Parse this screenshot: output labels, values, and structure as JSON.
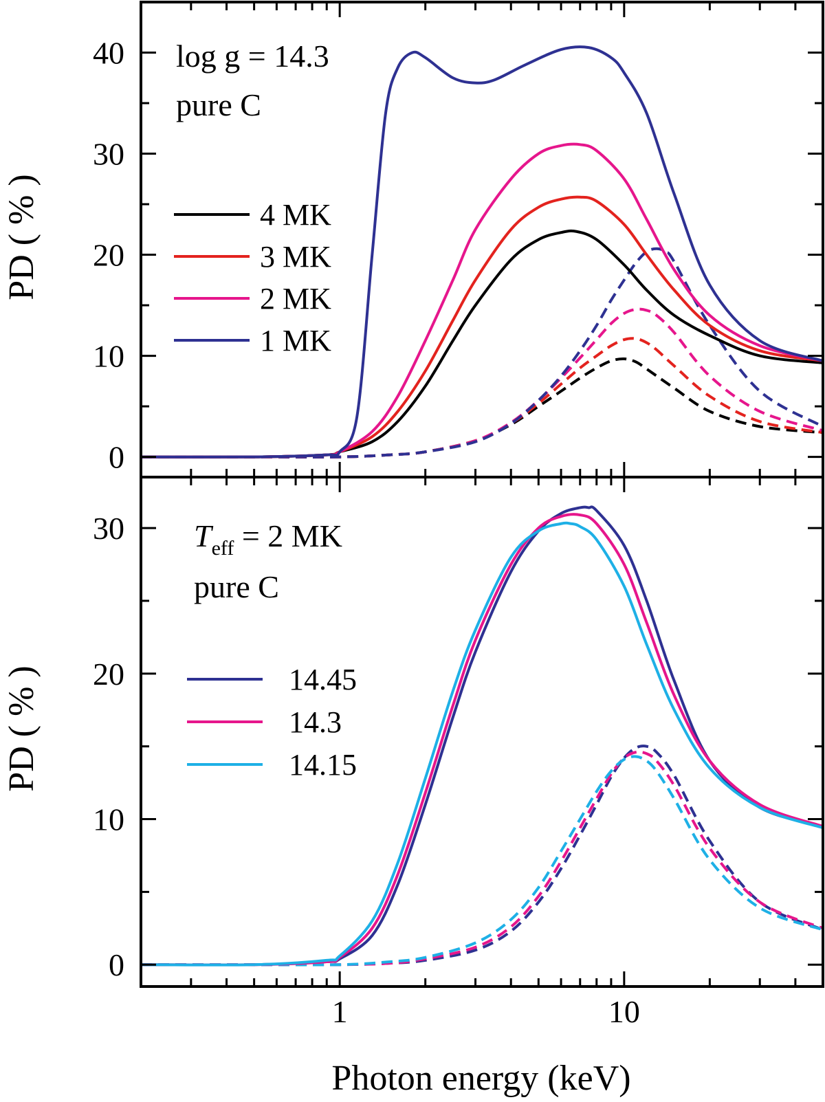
{
  "chart_data": [
    {
      "type": "line",
      "panel": "top",
      "ylabel": "PD ( % )",
      "xlabel": "",
      "xscale": "log",
      "xlim": [
        0.2,
        50
      ],
      "ylim": [
        -2,
        45
      ],
      "yticks": [
        0,
        10,
        20,
        30,
        40
      ],
      "xticks_labeled": [
        1,
        10
      ],
      "annotation": {
        "line1": "log g = 14.3",
        "line2": "pure C"
      },
      "legend_placement": "left-middle",
      "colors": {
        "4 MK": "#000000",
        "3 MK": "#e3231e",
        "2 MK": "#e6168c",
        "1 MK": "#2e3192"
      },
      "series": [
        {
          "name": "4 MK",
          "color": "#000000",
          "style": "solid",
          "x": [
            0.2,
            0.5,
            0.9,
            1.0,
            1.3,
            1.6,
            2.0,
            2.5,
            3.0,
            4.0,
            5.0,
            6.0,
            6.8,
            8.0,
            10.0,
            12.0,
            15.0,
            20.0,
            30.0,
            50.0
          ],
          "y": [
            0,
            0,
            0.2,
            0.5,
            1.5,
            3.5,
            7.0,
            11.5,
            15.0,
            19.5,
            21.5,
            22.2,
            22.3,
            21.5,
            19.0,
            16.5,
            14.0,
            12.0,
            10.0,
            9.3
          ]
        },
        {
          "name": "3 MK",
          "color": "#e3231e",
          "style": "solid",
          "x": [
            0.2,
            0.5,
            0.9,
            1.0,
            1.3,
            1.6,
            2.0,
            2.5,
            3.0,
            4.0,
            5.0,
            6.0,
            7.0,
            8.0,
            10.0,
            12.0,
            15.0,
            20.0,
            30.0,
            50.0
          ],
          "y": [
            0,
            0,
            0.2,
            0.5,
            2.0,
            4.5,
            8.5,
            13.5,
            17.5,
            22.5,
            24.7,
            25.5,
            25.7,
            25.3,
            23.0,
            20.0,
            16.5,
            13.0,
            10.5,
            9.5
          ]
        },
        {
          "name": "2 MK",
          "color": "#e6168c",
          "style": "solid",
          "x": [
            0.2,
            0.5,
            0.9,
            1.0,
            1.3,
            1.6,
            2.0,
            2.5,
            3.0,
            4.0,
            5.0,
            6.0,
            7.0,
            8.0,
            10.0,
            12.0,
            15.0,
            20.0,
            30.0,
            50.0
          ],
          "y": [
            0,
            0,
            0.2,
            0.5,
            2.5,
            6.0,
            11.5,
            17.5,
            22.5,
            27.5,
            30.0,
            30.8,
            30.9,
            30.3,
            27.5,
            23.5,
            18.5,
            14.0,
            11.0,
            9.5
          ]
        },
        {
          "name": "1 MK",
          "color": "#2e3192",
          "style": "solid",
          "x": [
            0.2,
            0.5,
            0.9,
            1.0,
            1.15,
            1.3,
            1.45,
            1.6,
            1.8,
            2.0,
            2.5,
            3.0,
            3.5,
            4.5,
            6.0,
            7.5,
            9.0,
            10.0,
            12.0,
            15.0,
            20.0,
            30.0,
            50.0
          ],
          "y": [
            0,
            0,
            0.2,
            0.5,
            4.0,
            20.0,
            34.0,
            38.5,
            40.0,
            39.5,
            37.5,
            37.0,
            37.3,
            38.8,
            40.3,
            40.5,
            39.5,
            38.0,
            34.0,
            26.0,
            17.0,
            11.5,
            9.5
          ]
        },
        {
          "name": "",
          "color": "#000000",
          "style": "dashed",
          "x": [
            0.2,
            0.5,
            1.0,
            1.5,
            2.0,
            3.0,
            4.0,
            5.0,
            6.0,
            7.0,
            8.0,
            9.0,
            10.0,
            11.0,
            12.0,
            15.0,
            20.0,
            30.0,
            50.0
          ],
          "y": [
            0,
            0,
            0,
            0.2,
            0.5,
            1.6,
            3.2,
            5.0,
            6.5,
            7.8,
            8.8,
            9.5,
            9.7,
            9.4,
            8.7,
            6.8,
            4.5,
            3.0,
            2.4
          ]
        },
        {
          "name": "",
          "color": "#e3231e",
          "style": "dashed",
          "x": [
            0.2,
            0.5,
            1.0,
            1.5,
            2.0,
            3.0,
            4.0,
            5.0,
            6.0,
            7.0,
            8.0,
            9.0,
            10.0,
            11.0,
            12.0,
            13.0,
            15.0,
            20.0,
            30.0,
            50.0
          ],
          "y": [
            0,
            0,
            0,
            0.2,
            0.5,
            1.6,
            3.3,
            5.3,
            7.2,
            8.8,
            10.0,
            11.0,
            11.6,
            11.7,
            11.3,
            10.6,
            9.0,
            6.0,
            3.5,
            2.4
          ]
        },
        {
          "name": "",
          "color": "#e6168c",
          "style": "dashed",
          "x": [
            0.2,
            0.5,
            1.0,
            1.5,
            2.0,
            3.0,
            4.0,
            5.0,
            6.0,
            7.0,
            8.0,
            9.0,
            10.0,
            11.0,
            12.0,
            13.0,
            15.0,
            20.0,
            30.0,
            50.0
          ],
          "y": [
            0,
            0,
            0,
            0.2,
            0.5,
            1.6,
            3.4,
            5.6,
            7.8,
            9.8,
            11.6,
            13.2,
            14.2,
            14.6,
            14.5,
            14.0,
            12.3,
            8.0,
            4.5,
            2.6
          ]
        },
        {
          "name": "",
          "color": "#2e3192",
          "style": "dashed",
          "x": [
            0.2,
            0.5,
            1.0,
            1.5,
            2.0,
            3.0,
            4.0,
            5.0,
            6.0,
            7.0,
            8.0,
            9.0,
            10.0,
            11.0,
            12.0,
            13.0,
            14.0,
            15.0,
            20.0,
            30.0,
            50.0
          ],
          "y": [
            0,
            0,
            0,
            0.2,
            0.5,
            1.5,
            3.3,
            5.6,
            8.0,
            10.5,
            13.0,
            15.5,
            17.5,
            19.2,
            20.3,
            20.6,
            20.3,
            19.3,
            13.0,
            6.5,
            3.0
          ]
        }
      ]
    },
    {
      "type": "line",
      "panel": "bottom",
      "ylabel": "PD ( % )",
      "xlabel": "Photon energy (keV)",
      "xscale": "log",
      "xlim": [
        0.2,
        50
      ],
      "ylim": [
        -1.5,
        33.5
      ],
      "yticks": [
        0,
        10,
        20,
        30
      ],
      "xticks_labeled": [
        1,
        10
      ],
      "annotation": {
        "line1_italic": "T",
        "line1_sub": "eff",
        "line1_rest": " = 2 MK",
        "line2": "pure C"
      },
      "legend_placement": "left-middle",
      "colors": {
        "14.45": "#2e3192",
        "14.3": "#e6168c",
        "14.15": "#1eb0e6"
      },
      "series": [
        {
          "name": "14.45",
          "color": "#2e3192",
          "style": "solid",
          "x": [
            0.2,
            0.5,
            0.9,
            1.0,
            1.3,
            1.6,
            2.0,
            2.5,
            3.0,
            4.0,
            5.0,
            6.0,
            7.0,
            7.5,
            8.0,
            10.0,
            12.0,
            15.0,
            20.0,
            30.0,
            50.0
          ],
          "y": [
            0,
            0,
            0.2,
            0.4,
            2.0,
            5.5,
            11.0,
            17.0,
            21.5,
            27.0,
            29.8,
            31.0,
            31.4,
            31.4,
            31.2,
            28.8,
            25.0,
            19.5,
            14.0,
            10.8,
            9.5
          ]
        },
        {
          "name": "14.3",
          "color": "#e6168c",
          "style": "solid",
          "x": [
            0.2,
            0.5,
            0.9,
            1.0,
            1.3,
            1.6,
            2.0,
            2.5,
            3.0,
            4.0,
            5.0,
            6.0,
            7.0,
            8.0,
            10.0,
            12.0,
            15.0,
            20.0,
            30.0,
            50.0
          ],
          "y": [
            0,
            0,
            0.2,
            0.5,
            2.5,
            6.2,
            11.8,
            17.8,
            22.3,
            27.5,
            30.0,
            30.8,
            30.9,
            30.3,
            27.5,
            23.5,
            18.5,
            14.0,
            11.0,
            9.5
          ]
        },
        {
          "name": "14.15",
          "color": "#1eb0e6",
          "style": "solid",
          "x": [
            0.2,
            0.5,
            0.9,
            1.0,
            1.3,
            1.6,
            2.0,
            2.5,
            3.0,
            4.0,
            5.0,
            6.0,
            6.5,
            7.0,
            8.0,
            10.0,
            12.0,
            15.0,
            20.0,
            30.0,
            50.0
          ],
          "y": [
            0,
            0,
            0.3,
            0.6,
            3.0,
            7.0,
            12.8,
            18.8,
            23.0,
            28.0,
            29.8,
            30.3,
            30.3,
            30.1,
            29.2,
            26.0,
            22.0,
            17.5,
            13.5,
            10.8,
            9.4
          ]
        },
        {
          "name": "",
          "color": "#2e3192",
          "style": "dashed",
          "x": [
            0.2,
            0.5,
            1.0,
            1.5,
            2.0,
            3.0,
            4.0,
            5.0,
            6.0,
            7.0,
            8.0,
            9.0,
            10.0,
            11.0,
            12.0,
            13.0,
            15.0,
            20.0,
            30.0,
            50.0
          ],
          "y": [
            0,
            0,
            0,
            0.1,
            0.3,
            1.0,
            2.3,
            4.3,
            6.6,
            8.9,
            11.0,
            12.9,
            14.2,
            14.9,
            15.0,
            14.6,
            13.0,
            8.5,
            4.3,
            2.4
          ]
        },
        {
          "name": "",
          "color": "#e6168c",
          "style": "dashed",
          "x": [
            0.2,
            0.5,
            1.0,
            1.5,
            2.0,
            3.0,
            4.0,
            5.0,
            6.0,
            7.0,
            8.0,
            9.0,
            10.0,
            11.0,
            12.0,
            13.0,
            15.0,
            20.0,
            30.0,
            50.0
          ],
          "y": [
            0,
            0,
            0,
            0.1,
            0.4,
            1.2,
            2.6,
            4.7,
            7.1,
            9.4,
            11.4,
            13.1,
            14.2,
            14.6,
            14.5,
            14.0,
            12.3,
            8.0,
            4.3,
            2.5
          ]
        },
        {
          "name": "",
          "color": "#1eb0e6",
          "style": "dashed",
          "x": [
            0.2,
            0.5,
            1.0,
            1.5,
            2.0,
            3.0,
            4.0,
            5.0,
            6.0,
            7.0,
            8.0,
            9.0,
            10.0,
            11.0,
            12.0,
            13.0,
            15.0,
            20.0,
            30.0,
            50.0
          ],
          "y": [
            0,
            0,
            0,
            0.2,
            0.5,
            1.5,
            3.1,
            5.3,
            7.8,
            10.0,
            11.9,
            13.3,
            14.1,
            14.3,
            14.0,
            13.3,
            11.4,
            7.2,
            3.9,
            2.4
          ]
        }
      ]
    }
  ]
}
